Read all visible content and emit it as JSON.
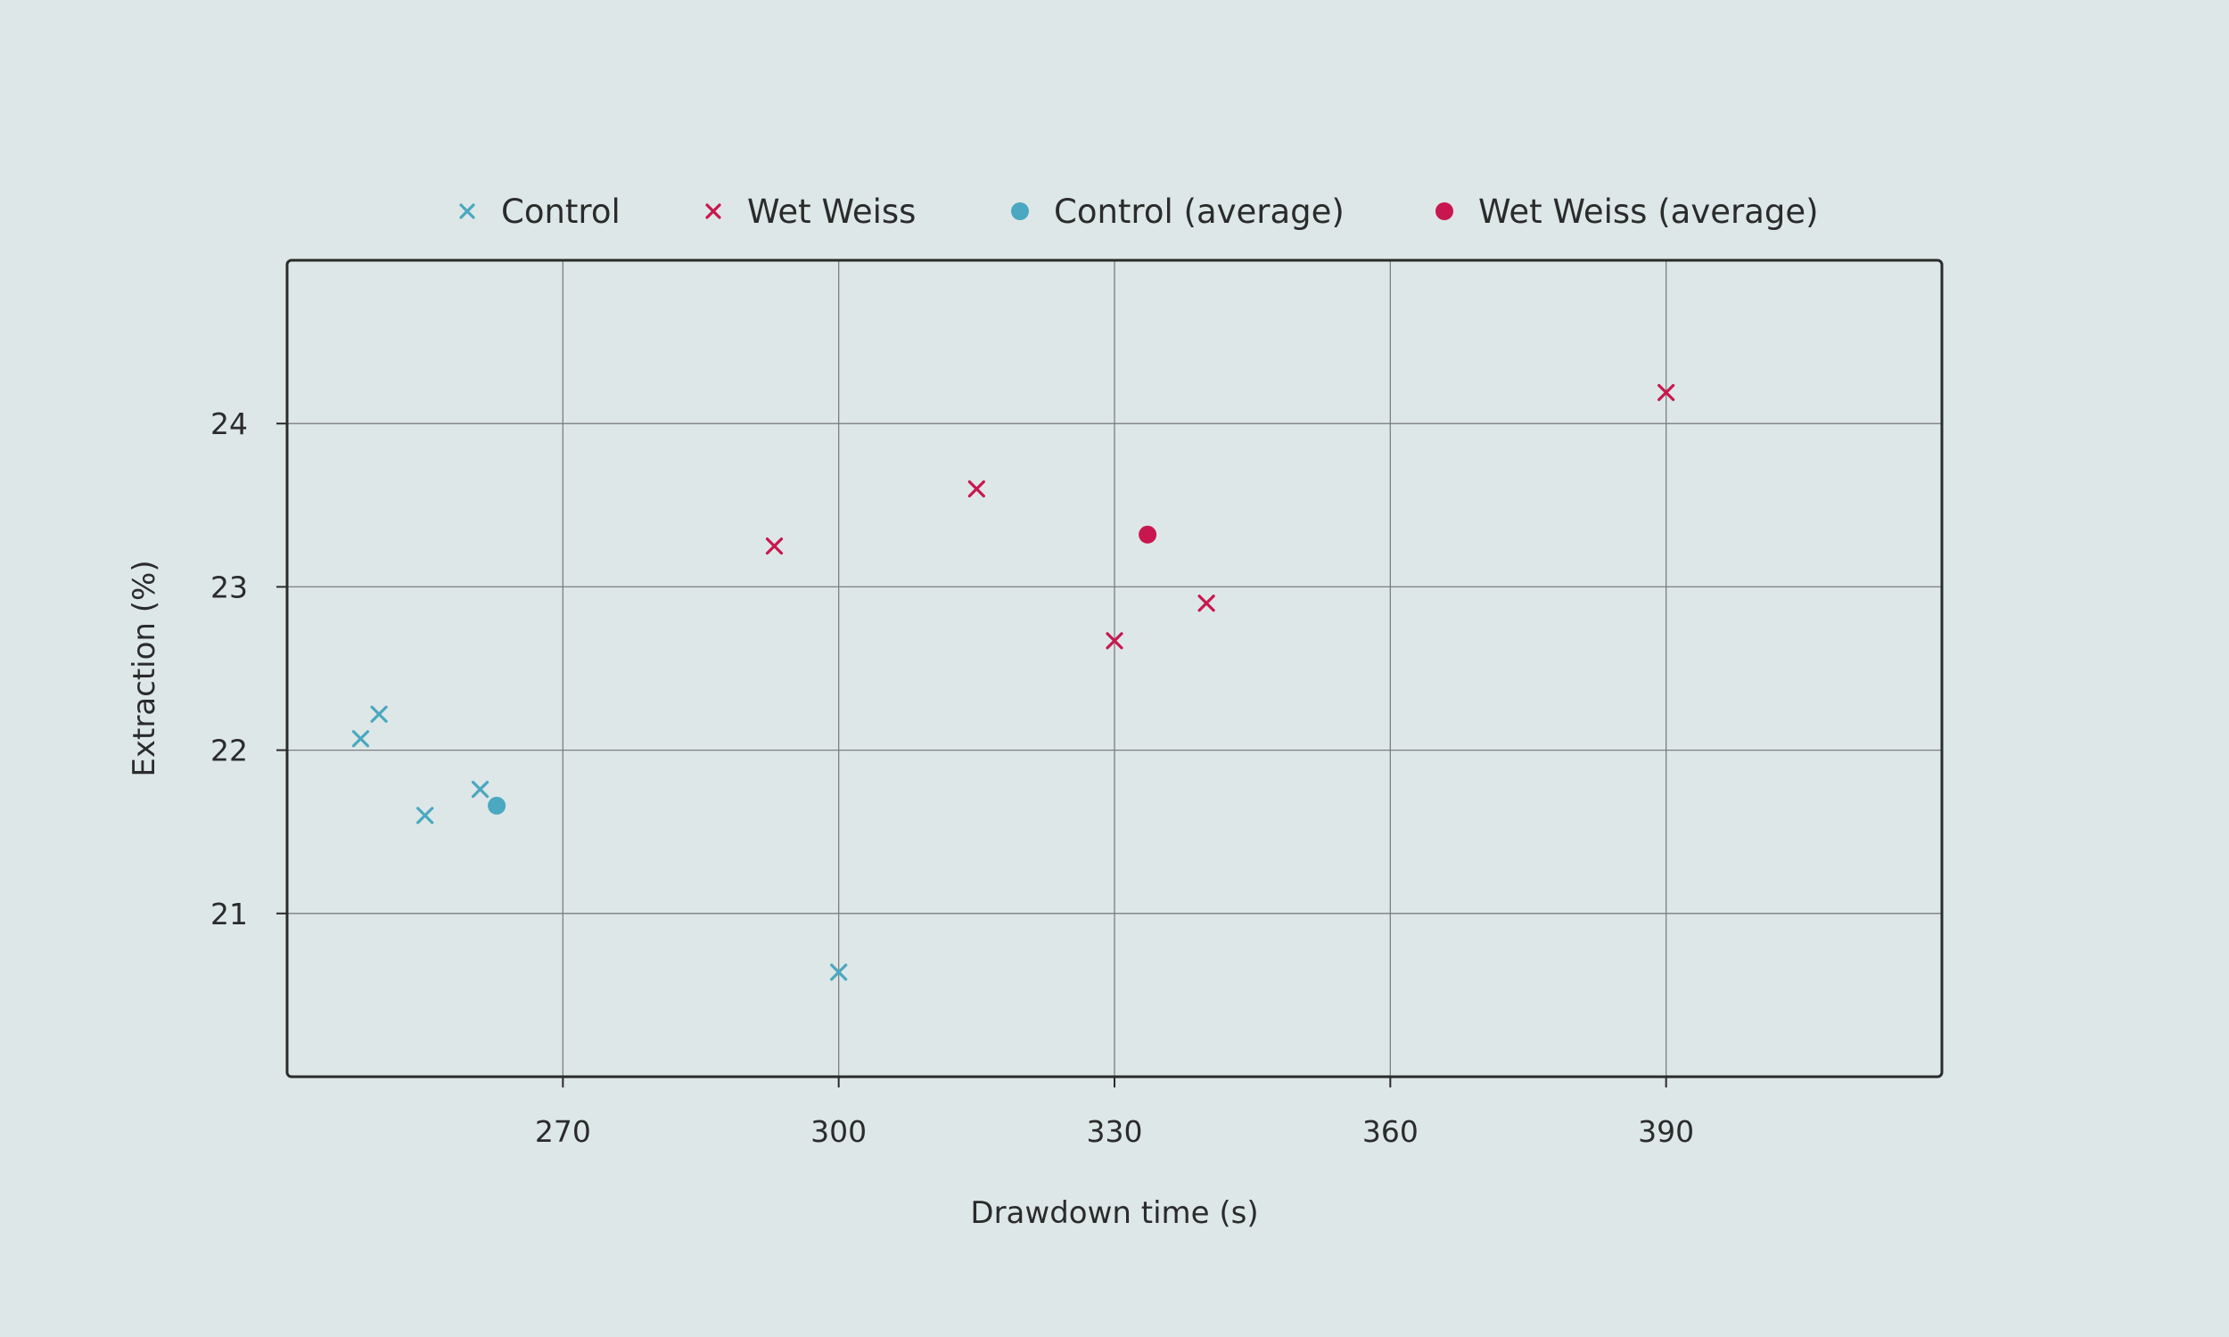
{
  "chart_data": {
    "type": "scatter",
    "xlabel": "Drawdown time (s)",
    "ylabel": "Extraction (%)",
    "xlim": [
      240,
      420
    ],
    "ylim": [
      20,
      25
    ],
    "x_ticks": [
      270,
      300,
      330,
      360,
      390
    ],
    "y_ticks": [
      21,
      22,
      23,
      24
    ],
    "grid": true,
    "legend_position": "top",
    "series": [
      {
        "name": "Control",
        "marker": "x",
        "color": "#4aa8c0",
        "points": [
          [
            248,
            22.07
          ],
          [
            250,
            22.22
          ],
          [
            255,
            21.6
          ],
          [
            261,
            21.76
          ],
          [
            300,
            20.64
          ]
        ]
      },
      {
        "name": "Wet Weiss",
        "marker": "x",
        "color": "#c8174f",
        "points": [
          [
            293,
            23.25
          ],
          [
            315,
            23.6
          ],
          [
            330,
            22.67
          ],
          [
            340,
            22.9
          ],
          [
            390,
            24.19
          ]
        ]
      },
      {
        "name": "Control (average)",
        "marker": "circle",
        "color": "#4aa8c0",
        "points": [
          [
            262.8,
            21.66
          ]
        ]
      },
      {
        "name": "Wet Weiss (average)",
        "marker": "circle",
        "color": "#c8174f",
        "points": [
          [
            333.6,
            23.32
          ]
        ]
      }
    ]
  }
}
